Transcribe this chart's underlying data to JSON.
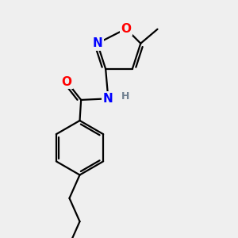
{
  "background_color": "#efefef",
  "bond_color": "#000000",
  "O_color": "#ff0000",
  "N_color": "#0000ff",
  "H_color": "#708090",
  "line_width": 1.6,
  "font_size_atoms": 11,
  "font_size_H": 9,
  "xlim": [
    0.1,
    0.9
  ],
  "ylim": [
    0.05,
    0.97
  ]
}
